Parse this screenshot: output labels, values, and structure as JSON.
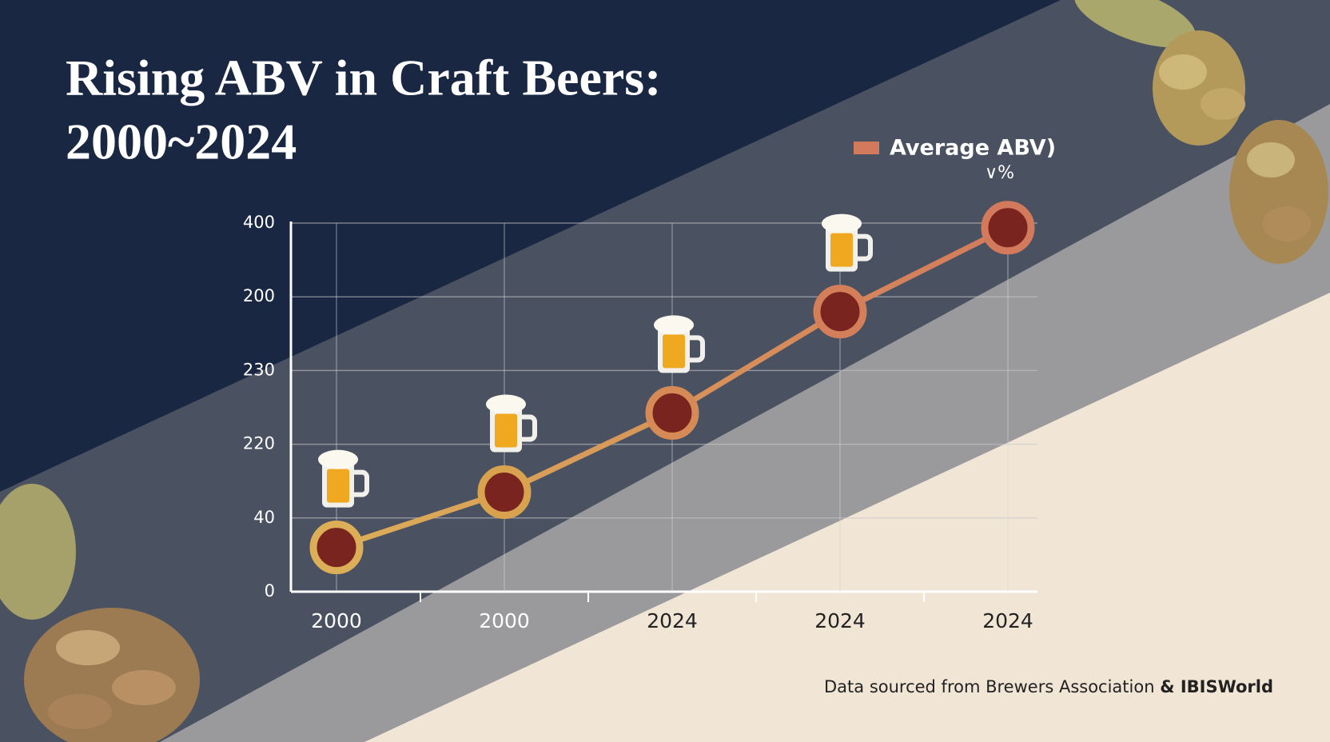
{
  "chart_data": {
    "type": "line",
    "title": [
      "Rising ABV in Craft Beers:",
      "2000~2024"
    ],
    "categories": [
      "2000",
      "2000",
      "2024",
      "2024",
      "2024"
    ],
    "series": [
      {
        "name": "Average ABV)",
        "color": "#d47a5c",
        "values": [
          48,
          108,
          194,
          304,
          395
        ]
      }
    ],
    "legend_unit": "∨%",
    "ylim": [
      0,
      400
    ],
    "yticks": [
      0,
      {
        "value": 80,
        "label": "40"
      },
      {
        "value": 160,
        "label": "220"
      },
      {
        "value": 240,
        "label": "230"
      },
      {
        "value": 320,
        "label": "200"
      },
      400
    ],
    "grid": true,
    "legend": "upper right",
    "source": {
      "text": "Data sourced from Brewers Association ",
      "bold": "& IBISWorld"
    }
  }
}
